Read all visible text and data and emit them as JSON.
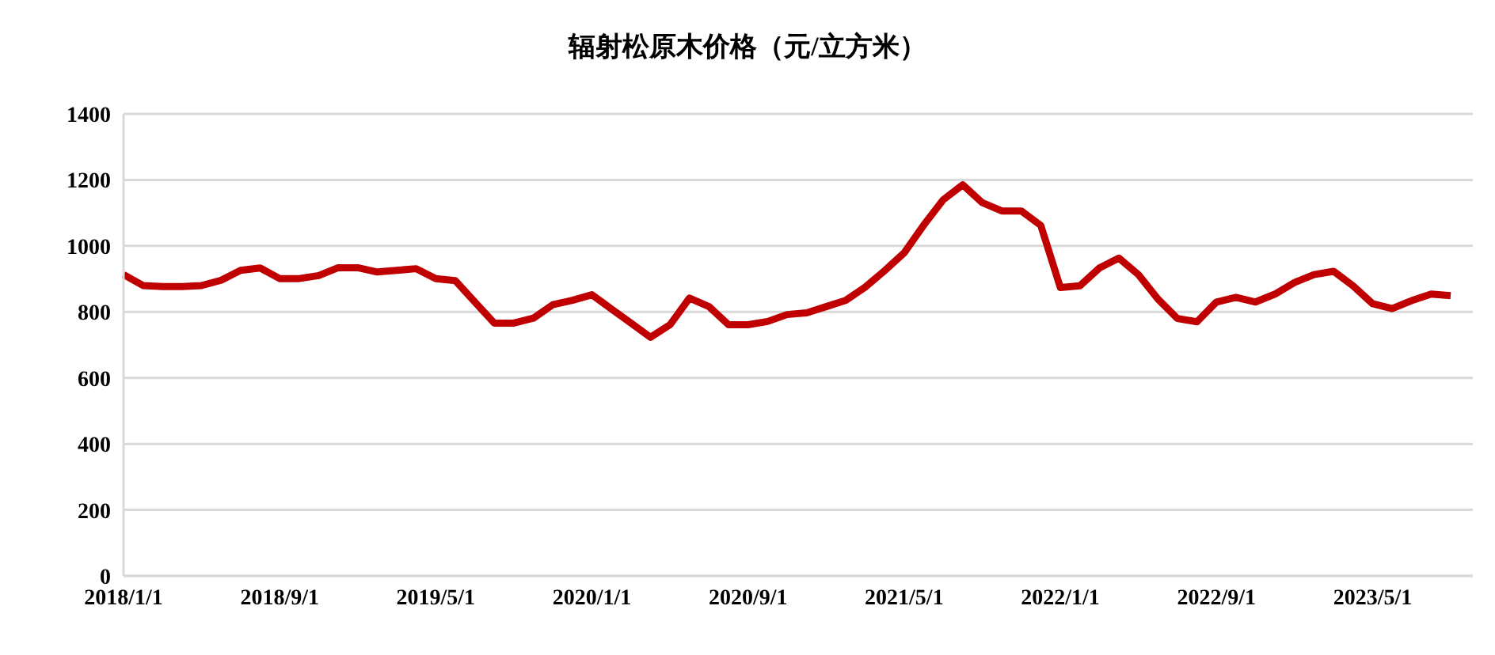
{
  "chart_data": {
    "type": "line",
    "title": "辐射松原木价格（元/立方米）",
    "categories": [
      "2018/1/1",
      null,
      null,
      null,
      null,
      null,
      null,
      null,
      "2018/9/1",
      null,
      null,
      null,
      null,
      null,
      null,
      null,
      "2019/5/1",
      null,
      null,
      null,
      null,
      null,
      null,
      null,
      "2020/1/1",
      null,
      null,
      null,
      null,
      null,
      null,
      null,
      "2020/9/1",
      null,
      null,
      null,
      null,
      null,
      null,
      null,
      "2021/5/1",
      null,
      null,
      null,
      null,
      null,
      null,
      null,
      "2022/1/1",
      null,
      null,
      null,
      null,
      null,
      null,
      null,
      "2022/9/1",
      null,
      null,
      null,
      null,
      null,
      null,
      null,
      "2023/5/1",
      null,
      null,
      null,
      null
    ],
    "series": [
      {
        "color": "#c00000",
        "values": [
          913,
          880,
          877,
          877,
          880,
          896,
          926,
          933,
          901,
          901,
          910,
          934,
          934,
          921,
          926,
          931,
          901,
          895,
          830,
          766,
          766,
          781,
          822,
          835,
          852,
          809,
          766,
          723,
          761,
          842,
          816,
          761,
          761,
          771,
          792,
          797,
          816,
          835,
          875,
          925,
          979,
          1063,
          1140,
          1185,
          1131,
          1106,
          1106,
          1062,
          874,
          879,
          933,
          963,
          913,
          839,
          780,
          770,
          830,
          844,
          830,
          854,
          889,
          913,
          923,
          879,
          825,
          810,
          834,
          854,
          849
        ]
      }
    ],
    "ylim": [
      0,
      1400
    ],
    "yticks": [
      0,
      200,
      400,
      600,
      800,
      1000,
      1200,
      1400
    ],
    "grid": "y",
    "legend": false,
    "marker": "none",
    "line_style": "solid"
  }
}
